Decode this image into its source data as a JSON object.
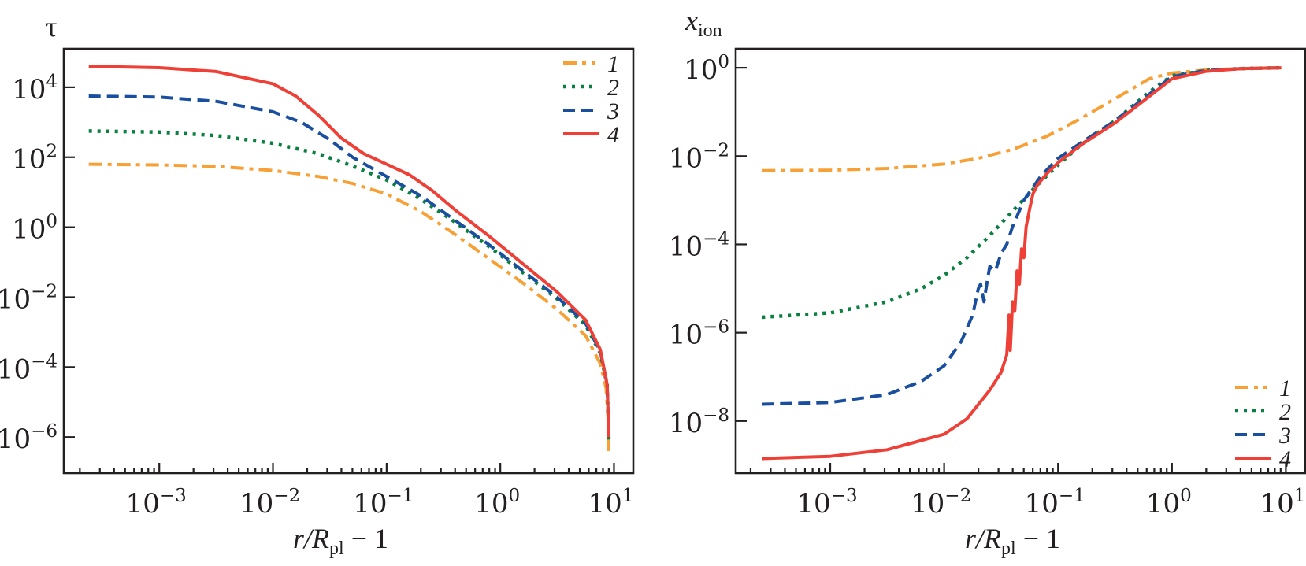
{
  "chart_data": [
    {
      "type": "line",
      "panel": "left",
      "title": "",
      "ylabel": "τ",
      "xlabel": {
        "main": "r/R",
        "sub": "pl",
        "suffix": " − 1"
      },
      "xscale": "log",
      "yscale": "log",
      "xlim_log10": [
        -3.84,
        1.17
      ],
      "ylim_log10": [
        -7.03,
        5.1
      ],
      "xticks": [
        {
          "exp": -3,
          "label": "10",
          "sup": "−3"
        },
        {
          "exp": -2,
          "label": "10",
          "sup": "−2"
        },
        {
          "exp": -1,
          "label": "10",
          "sup": "−1"
        },
        {
          "exp": 0,
          "label": "10",
          "sup": "0"
        },
        {
          "exp": 1,
          "label": "10",
          "sup": "1"
        }
      ],
      "yticks": [
        {
          "exp": 4,
          "label": "10",
          "sup": "4"
        },
        {
          "exp": 2,
          "label": "10",
          "sup": "2"
        },
        {
          "exp": 0,
          "label": "10",
          "sup": "0"
        },
        {
          "exp": -2,
          "label": "10",
          "sup": "−2"
        },
        {
          "exp": -4,
          "label": "10",
          "sup": "−4"
        },
        {
          "exp": -6,
          "label": "10",
          "sup": "−6"
        }
      ],
      "legend": {
        "position": "upper-right"
      },
      "series": [
        {
          "name": "1",
          "color": "#f7a035",
          "style": "dashdot",
          "x_log10": [
            -3.62,
            -3.0,
            -2.5,
            -2.0,
            -1.6,
            -1.3,
            -1.0,
            -0.7,
            -0.4,
            -0.1,
            0.2,
            0.5,
            0.75,
            0.88,
            0.93,
            0.95,
            0.955
          ],
          "y_log10": [
            1.8,
            1.78,
            1.74,
            1.62,
            1.45,
            1.25,
            0.95,
            0.45,
            -0.2,
            -0.9,
            -1.6,
            -2.35,
            -3.1,
            -3.9,
            -4.6,
            -5.6,
            -6.4
          ]
        },
        {
          "name": "2",
          "color": "#0a8040",
          "style": "dotted",
          "x_log10": [
            -3.62,
            -3.0,
            -2.5,
            -2.0,
            -1.6,
            -1.3,
            -1.0,
            -0.7,
            -0.4,
            -0.1,
            0.2,
            0.5,
            0.75,
            0.88,
            0.94,
            0.955
          ],
          "y_log10": [
            2.75,
            2.72,
            2.62,
            2.4,
            2.1,
            1.75,
            1.35,
            0.8,
            0.15,
            -0.55,
            -1.3,
            -2.05,
            -2.8,
            -3.6,
            -4.5,
            -6.1
          ]
        },
        {
          "name": "3",
          "color": "#1a4fa0",
          "style": "dashed",
          "x_log10": [
            -3.62,
            -3.0,
            -2.5,
            -2.0,
            -1.75,
            -1.5,
            -1.3,
            -1.0,
            -0.7,
            -0.4,
            -0.1,
            0.2,
            0.5,
            0.75,
            0.88,
            0.94,
            0.955
          ],
          "y_log10": [
            3.75,
            3.72,
            3.6,
            3.3,
            3.0,
            2.5,
            2.0,
            1.45,
            0.9,
            0.2,
            -0.5,
            -1.25,
            -2.0,
            -2.75,
            -3.55,
            -4.5,
            -6.0
          ]
        },
        {
          "name": "4",
          "color": "#ee4036",
          "style": "solid",
          "x_log10": [
            -3.62,
            -3.0,
            -2.5,
            -2.0,
            -1.8,
            -1.6,
            -1.4,
            -1.2,
            -1.0,
            -0.8,
            -0.6,
            -0.4,
            -0.1,
            0.2,
            0.5,
            0.75,
            0.88,
            0.94,
            0.955
          ],
          "y_log10": [
            4.6,
            4.56,
            4.45,
            4.1,
            3.75,
            3.2,
            2.55,
            2.1,
            1.8,
            1.5,
            1.05,
            0.5,
            -0.25,
            -1.05,
            -1.85,
            -2.65,
            -3.5,
            -4.5,
            -6.0
          ]
        }
      ]
    },
    {
      "type": "line",
      "panel": "right",
      "title": "",
      "ylabel": {
        "main": "x",
        "sub": "ion"
      },
      "xlabel": {
        "main": "r/R",
        "sub": "pl",
        "suffix": " − 1"
      },
      "xscale": "log",
      "yscale": "log",
      "xlim_log10": [
        -3.83,
        1.17
      ],
      "ylim_log10": [
        -9.18,
        0.43
      ],
      "xticks": [
        {
          "exp": -3,
          "label": "10",
          "sup": "−3"
        },
        {
          "exp": -2,
          "label": "10",
          "sup": "−2"
        },
        {
          "exp": -1,
          "label": "10",
          "sup": "−1"
        },
        {
          "exp": 0,
          "label": "10",
          "sup": "0"
        },
        {
          "exp": 1,
          "label": "10",
          "sup": "1"
        }
      ],
      "yticks": [
        {
          "exp": 0,
          "label": "10",
          "sup": "0"
        },
        {
          "exp": -2,
          "label": "10",
          "sup": "−2"
        },
        {
          "exp": -4,
          "label": "10",
          "sup": "−4"
        },
        {
          "exp": -6,
          "label": "10",
          "sup": "−6"
        },
        {
          "exp": -8,
          "label": "10",
          "sup": "−8"
        }
      ],
      "legend": {
        "position": "lower-right"
      },
      "series": [
        {
          "name": "1",
          "color": "#f7a035",
          "style": "dashdot",
          "x_log10": [
            -3.6,
            -3.0,
            -2.5,
            -2.0,
            -1.7,
            -1.4,
            -1.1,
            -0.8,
            -0.5,
            -0.2,
            0.0,
            0.3,
            0.6,
            0.96
          ],
          "y_log10": [
            -2.33,
            -2.32,
            -2.28,
            -2.18,
            -2.05,
            -1.85,
            -1.55,
            -1.15,
            -0.7,
            -0.25,
            -0.12,
            -0.05,
            -0.02,
            0.0
          ]
        },
        {
          "name": "2",
          "color": "#0a8040",
          "style": "dotted",
          "x_log10": [
            -3.6,
            -3.0,
            -2.5,
            -2.2,
            -2.0,
            -1.8,
            -1.6,
            -1.4,
            -1.2,
            -1.0,
            -0.8,
            -0.5,
            -0.2,
            0.0,
            0.3,
            0.6,
            0.96
          ],
          "y_log10": [
            -5.65,
            -5.55,
            -5.3,
            -5.0,
            -4.7,
            -4.3,
            -3.8,
            -3.25,
            -2.7,
            -2.2,
            -1.75,
            -1.2,
            -0.55,
            -0.18,
            -0.06,
            -0.02,
            0.0
          ]
        },
        {
          "name": "3",
          "color": "#1a4fa0",
          "style": "dashed",
          "x_log10": [
            -3.6,
            -3.0,
            -2.5,
            -2.2,
            -2.0,
            -1.85,
            -1.75,
            -1.7,
            -1.68,
            -1.65,
            -1.62,
            -1.6,
            -1.55,
            -1.5,
            -1.45,
            -1.4,
            -1.3,
            -1.15,
            -1.0,
            -0.8,
            -0.5,
            -0.2,
            0.0,
            0.3,
            0.6,
            0.96
          ],
          "y_log10": [
            -7.62,
            -7.58,
            -7.4,
            -7.1,
            -6.75,
            -6.2,
            -5.6,
            -5.0,
            -4.9,
            -5.3,
            -4.8,
            -4.5,
            -4.6,
            -4.2,
            -4.0,
            -3.6,
            -3.0,
            -2.45,
            -2.05,
            -1.7,
            -1.2,
            -0.6,
            -0.2,
            -0.06,
            -0.02,
            0.0
          ]
        },
        {
          "name": "4",
          "color": "#ee4036",
          "style": "solid",
          "x_log10": [
            -3.6,
            -3.0,
            -2.5,
            -2.0,
            -1.8,
            -1.6,
            -1.5,
            -1.45,
            -1.43,
            -1.42,
            -1.41,
            -1.4,
            -1.38,
            -1.36,
            -1.34,
            -1.32,
            -1.3,
            -1.28,
            -1.25,
            -1.22,
            -1.18,
            -1.1,
            -1.0,
            -0.8,
            -0.5,
            -0.2,
            0.0,
            0.3,
            0.6,
            0.96
          ],
          "y_log10": [
            -8.85,
            -8.8,
            -8.65,
            -8.3,
            -7.95,
            -7.3,
            -6.9,
            -6.5,
            -5.6,
            -6.4,
            -5.9,
            -5.3,
            -5.5,
            -4.6,
            -4.9,
            -4.1,
            -4.3,
            -3.6,
            -3.2,
            -2.85,
            -2.65,
            -2.4,
            -2.15,
            -1.75,
            -1.25,
            -0.65,
            -0.25,
            -0.08,
            -0.02,
            0.0
          ]
        }
      ]
    }
  ]
}
